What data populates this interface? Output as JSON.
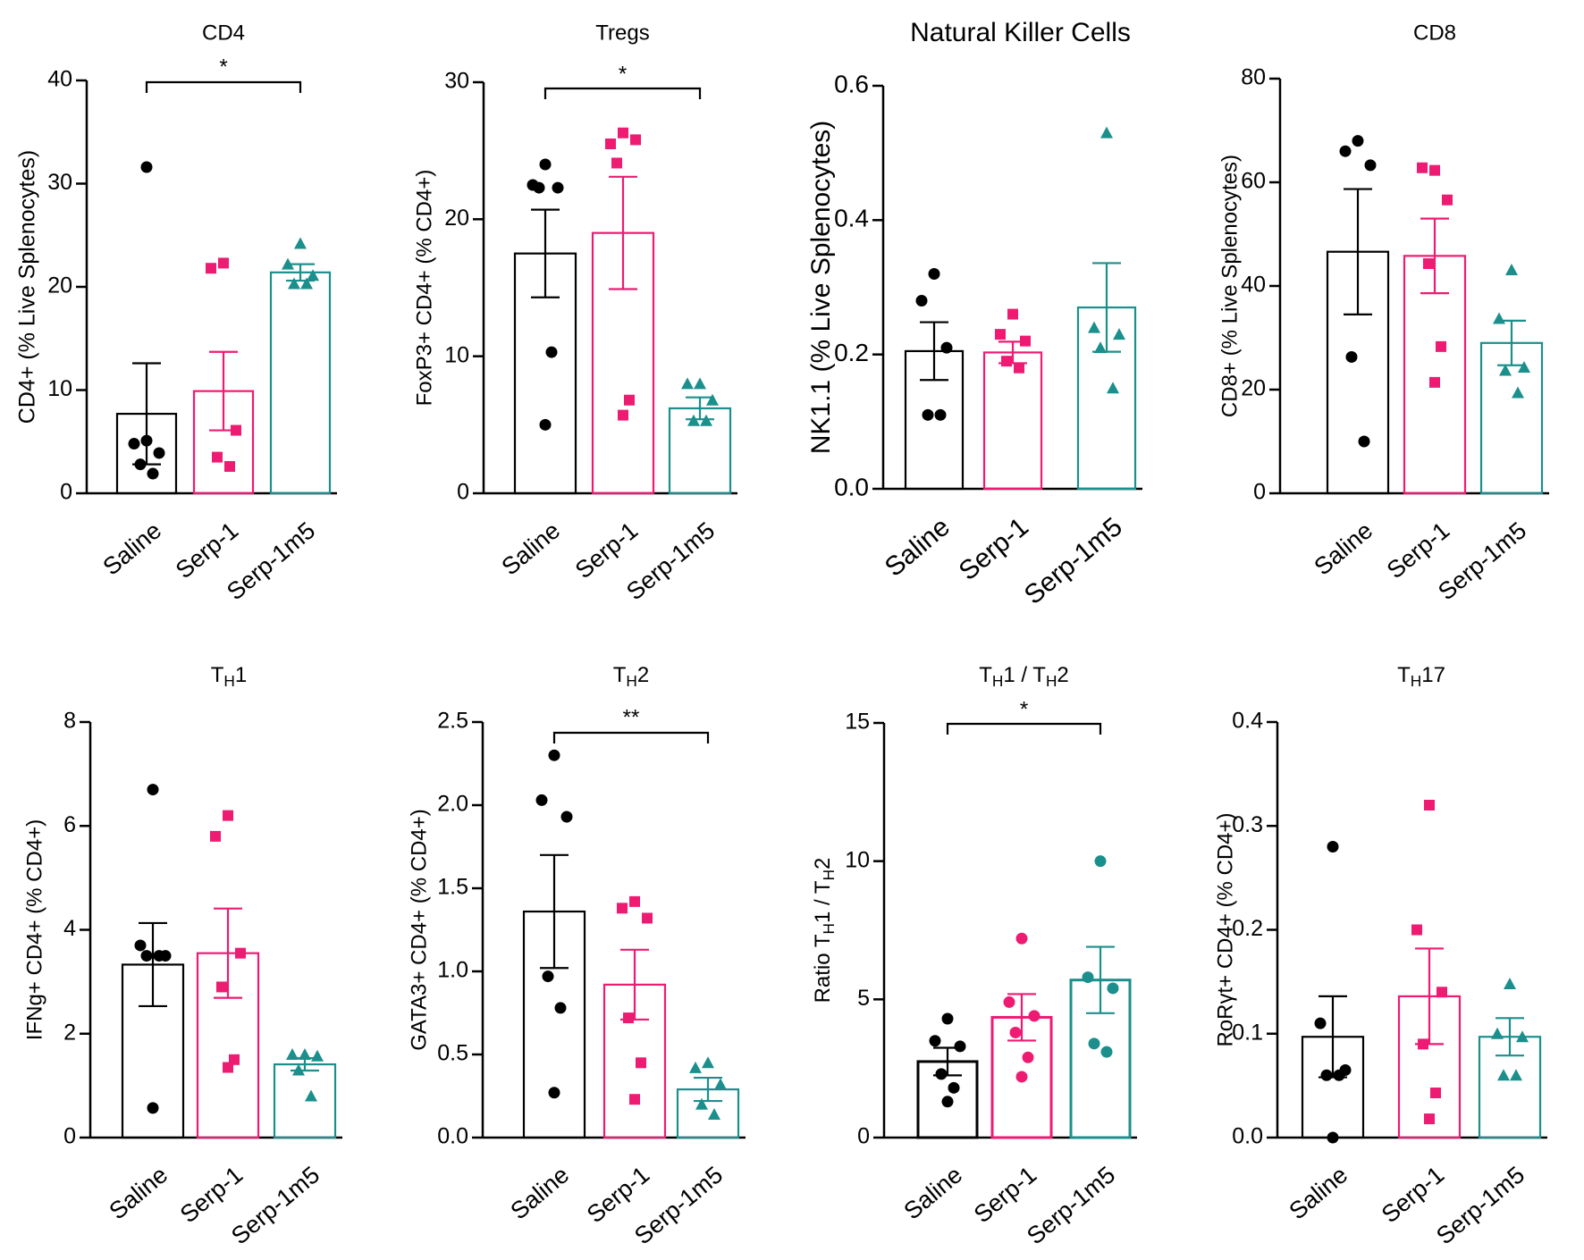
{
  "figure": {
    "colors": {
      "Saline": "#000000",
      "Serp-1": "#ee1b72",
      "Serp-1m5": "#1b8f8c"
    },
    "markers": {
      "Saline": "circle",
      "Serp-1": "square",
      "Serp-1m5": "triangle"
    }
  },
  "chart_data": [
    {
      "type": "bar",
      "title": "CD4",
      "ylabel": "CD4+ (% Live Splenocytes)",
      "categories": [
        "Saline",
        "Serp-1",
        "Serp-1m5"
      ],
      "ylim": [
        0,
        40
      ],
      "ticks": [
        "0",
        "10",
        "20",
        "30",
        "40"
      ],
      "means": [
        7.7,
        9.9,
        21.4
      ],
      "sem": [
        4.9,
        3.8,
        0.8
      ],
      "points": [
        [
          31.6,
          4.8,
          3.9,
          2.8,
          1.9,
          5.1
        ],
        [
          22.3,
          21.8,
          6.1,
          3.5,
          2.6
        ],
        [
          24.2,
          22.2,
          21.1,
          20.3,
          20.3
        ]
      ],
      "significance": [
        {
          "pair": [
            0,
            2
          ],
          "label": "*"
        }
      ]
    },
    {
      "type": "bar",
      "title": "Tregs",
      "ylabel": "FoxP3+ CD4+ (% CD4+)",
      "categories": [
        "Saline",
        "Serp-1",
        "Serp-1m5"
      ],
      "ylim": [
        0,
        30
      ],
      "ticks": [
        "0",
        "10",
        "20",
        "30"
      ],
      "means": [
        17.5,
        19.0,
        6.2
      ],
      "sem": [
        3.2,
        4.1,
        0.8
      ],
      "points": [
        [
          24.0,
          22.5,
          22.3,
          22.3,
          10.3,
          5.0
        ],
        [
          26.3,
          25.5,
          25.8,
          24.1,
          6.8,
          5.7
        ],
        [
          8.0,
          8.0,
          6.8,
          5.3,
          5.3
        ]
      ],
      "significance": [
        {
          "pair": [
            0,
            2
          ],
          "label": "*"
        }
      ]
    },
    {
      "type": "bar",
      "title": "Natural Killer Cells",
      "ylabel": "NK1.1 (% Live Splenocytes)",
      "categories": [
        "Saline",
        "Serp-1",
        "Serp-1m5"
      ],
      "ylim": [
        0,
        0.6
      ],
      "ticks": [
        "0.0",
        "0.2",
        "0.4",
        "0.6"
      ],
      "means": [
        0.205,
        0.203,
        0.27
      ],
      "sem": [
        0.043,
        0.016,
        0.066
      ],
      "points": [
        [
          0.32,
          0.28,
          0.21,
          0.11,
          0.11
        ],
        [
          0.26,
          0.23,
          0.22,
          0.19,
          0.18
        ],
        [
          0.53,
          0.24,
          0.23,
          0.21,
          0.15
        ]
      ],
      "significance": []
    },
    {
      "type": "bar",
      "title": "CD8",
      "ylabel": "CD8+ (% Live Splenocytes)",
      "categories": [
        "Saline",
        "Serp-1",
        "Serp-1m5"
      ],
      "ylim": [
        0,
        80
      ],
      "ticks": [
        "0",
        "20",
        "40",
        "60",
        "80"
      ],
      "means": [
        46.6,
        45.8,
        29.0
      ],
      "sem": [
        12.1,
        7.2,
        4.3
      ],
      "points": [
        [
          68.0,
          66.0,
          63.3,
          26.3,
          10.0
        ],
        [
          62.3,
          62.8,
          56.6,
          44.3,
          28.3,
          21.4
        ],
        [
          43.1,
          33.7,
          24.3,
          23.7,
          19.4
        ]
      ],
      "significance": []
    },
    {
      "type": "bar",
      "title": "TH1",
      "ylabel": "IFNg+ CD4+ (% CD4+)",
      "categories": [
        "Saline",
        "Serp-1",
        "Serp-1m5"
      ],
      "ylim": [
        0,
        8
      ],
      "ticks": [
        "0",
        "2",
        "4",
        "6",
        "8"
      ],
      "means": [
        3.33,
        3.55,
        1.41
      ],
      "sem": [
        0.8,
        0.86,
        0.12
      ],
      "points": [
        [
          6.7,
          3.7,
          3.5,
          3.5,
          3.5,
          0.57
        ],
        [
          6.2,
          5.8,
          3.55,
          2.9,
          1.5,
          1.35
        ],
        [
          1.6,
          1.6,
          1.57,
          1.3,
          0.8
        ]
      ],
      "significance": []
    },
    {
      "type": "bar",
      "title": "TH2",
      "ylabel": "GATA3+ CD4+ (% CD4+)",
      "categories": [
        "Saline",
        "Serp-1",
        "Serp-1m5"
      ],
      "ylim": [
        0,
        2.5
      ],
      "ticks": [
        "0.0",
        "0.5",
        "1.0",
        "1.5",
        "2.0",
        "2.5"
      ],
      "means": [
        1.36,
        0.92,
        0.29
      ],
      "sem": [
        0.34,
        0.21,
        0.07
      ],
      "points": [
        [
          2.3,
          2.03,
          1.93,
          0.97,
          0.78,
          0.27
        ],
        [
          1.42,
          1.38,
          1.32,
          0.72,
          0.45,
          0.23
        ],
        [
          0.45,
          0.42,
          0.32,
          0.2,
          0.14
        ]
      ],
      "significance": [
        {
          "pair": [
            0,
            2
          ],
          "label": "**"
        }
      ]
    },
    {
      "type": "bar",
      "title": "TH1 / TH2",
      "ylabel": "Ratio TH1 / TH2",
      "categories": [
        "Saline",
        "Serp-1",
        "Serp-1m5"
      ],
      "ylim": [
        0,
        15
      ],
      "ticks": [
        "0",
        "5",
        "10",
        "15"
      ],
      "means": [
        2.75,
        4.35,
        5.7
      ],
      "sem": [
        0.5,
        0.84,
        1.2
      ],
      "points": [
        [
          4.3,
          3.5,
          3.3,
          2.3,
          1.8,
          1.3
        ],
        [
          7.2,
          4.9,
          4.4,
          3.8,
          2.9,
          2.2
        ],
        [
          10.0,
          5.8,
          5.4,
          3.4,
          3.1
        ]
      ],
      "significance": [
        {
          "pair": [
            0,
            2
          ],
          "label": "*"
        }
      ]
    },
    {
      "type": "bar",
      "title": "TH17",
      "ylabel": "RoRγt+ CD4+ (% CD4+)",
      "categories": [
        "Saline",
        "Serp-1",
        "Serp-1m5"
      ],
      "ylim": [
        0,
        0.4
      ],
      "ticks": [
        "0.0",
        "0.1",
        "0.2",
        "0.3",
        "0.4"
      ],
      "means": [
        0.097,
        0.136,
        0.097
      ],
      "sem": [
        0.039,
        0.046,
        0.018
      ],
      "points": [
        [
          0.28,
          0.11,
          0.065,
          0.06,
          0.06,
          0.0
        ],
        [
          0.32,
          0.2,
          0.14,
          0.09,
          0.043,
          0.018
        ],
        [
          0.148,
          0.1,
          0.097,
          0.06,
          0.06
        ]
      ],
      "significance": []
    }
  ]
}
